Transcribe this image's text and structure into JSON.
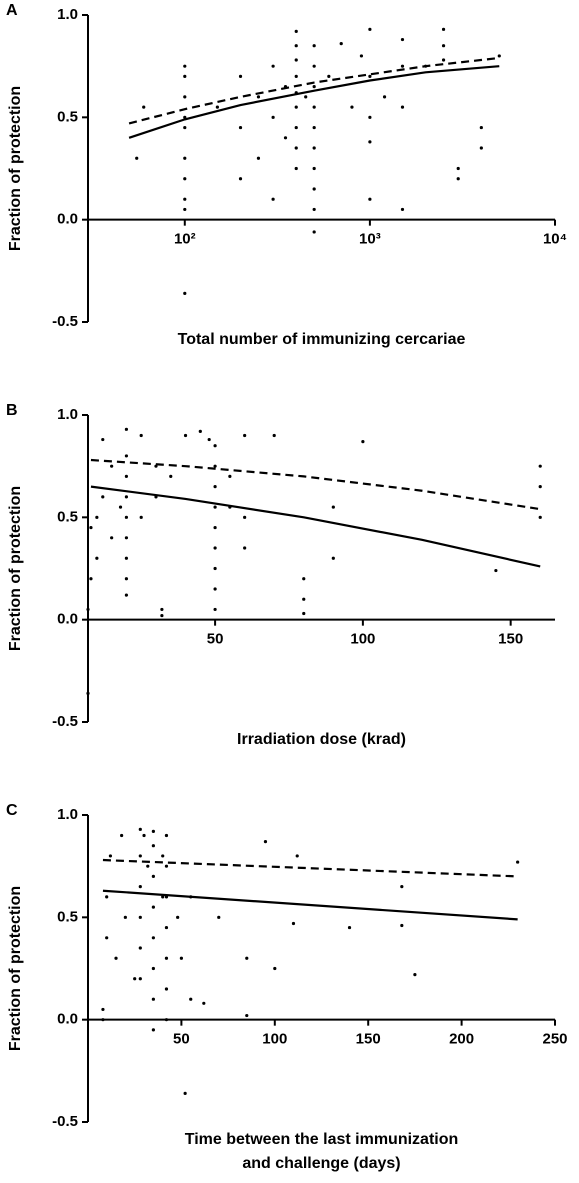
{
  "chart_data": [
    {
      "type": "scatter",
      "panel_label": "A",
      "ylabel": "Fraction of protection",
      "xlabel": [
        "Total number of immunizing cercariae"
      ],
      "xscale": "log",
      "xlim": [
        30,
        10000
      ],
      "xticks": [
        {
          "value": 100,
          "label": "10²"
        },
        {
          "value": 1000,
          "label": "10³"
        },
        {
          "value": 10000,
          "label": "10⁴"
        }
      ],
      "ylim": [
        -0.5,
        1
      ],
      "yticks": [
        -0.5,
        {
          "value": 0,
          "label": "0.0"
        },
        0.5,
        {
          "value": 1,
          "label": "1.0"
        }
      ],
      "color": "#000000",
      "points": {
        "x": [
          55,
          60,
          100,
          100,
          100,
          100,
          100,
          100,
          100,
          100,
          100,
          100,
          150,
          200,
          200,
          200,
          250,
          250,
          300,
          300,
          300,
          350,
          350,
          400,
          400,
          400,
          400,
          400,
          400,
          400,
          400,
          400,
          450,
          500,
          500,
          500,
          500,
          500,
          500,
          500,
          500,
          500,
          500,
          600,
          700,
          800,
          900,
          1000,
          1000,
          1000,
          1000,
          1000,
          1200,
          1500,
          1500,
          1500,
          1500,
          2000,
          2500,
          2500,
          2500,
          3000,
          3000,
          4000,
          4000,
          5000
        ],
        "y": [
          0.3,
          0.55,
          0.75,
          0.7,
          0.6,
          0.5,
          0.45,
          0.3,
          0.2,
          0.1,
          0.05,
          -0.36,
          0.55,
          0.7,
          0.45,
          0.2,
          0.6,
          0.3,
          0.75,
          0.5,
          0.1,
          0.65,
          0.4,
          0.92,
          0.85,
          0.78,
          0.7,
          0.62,
          0.55,
          0.45,
          0.35,
          0.25,
          0.6,
          0.85,
          0.75,
          0.65,
          0.55,
          0.45,
          0.35,
          0.25,
          0.15,
          0.05,
          -0.06,
          0.7,
          0.86,
          0.55,
          0.8,
          0.93,
          0.7,
          0.5,
          0.38,
          0.1,
          0.6,
          0.88,
          0.75,
          0.55,
          0.05,
          0.75,
          0.93,
          0.85,
          0.78,
          0.25,
          0.2,
          0.45,
          0.35,
          0.8
        ]
      },
      "series": [
        {
          "style": "solid",
          "x": [
            50,
            100,
            200,
            500,
            1000,
            2000,
            5000
          ],
          "values": [
            0.4,
            0.49,
            0.56,
            0.63,
            0.68,
            0.72,
            0.75
          ]
        },
        {
          "style": "dashed",
          "x": [
            50,
            100,
            200,
            500,
            1000,
            2000,
            5000
          ],
          "values": [
            0.47,
            0.54,
            0.6,
            0.67,
            0.71,
            0.75,
            0.79
          ]
        }
      ]
    },
    {
      "type": "scatter",
      "panel_label": "B",
      "ylabel": "Fraction of protection",
      "xlabel": [
        "Irradiation dose (krad)"
      ],
      "xlim": [
        7,
        165
      ],
      "xticks": [
        50,
        100,
        150
      ],
      "ylim": [
        -0.5,
        1
      ],
      "yticks": [
        -0.5,
        {
          "value": 0,
          "label": "0.0"
        },
        0.5,
        {
          "value": 1,
          "label": "1.0"
        }
      ],
      "color": "#000000",
      "points": {
        "x": [
          7,
          7,
          8,
          8,
          10,
          10,
          12,
          12,
          15,
          15,
          18,
          20,
          20,
          20,
          20,
          20,
          20,
          20,
          20,
          20,
          25,
          25,
          30,
          30,
          32,
          32,
          35,
          40,
          45,
          48,
          50,
          50,
          50,
          50,
          50,
          50,
          50,
          50,
          50,
          55,
          55,
          60,
          60,
          60,
          70,
          80,
          80,
          80,
          90,
          90,
          100,
          145,
          160,
          160,
          160
        ],
        "y": [
          -0.36,
          0.05,
          0.45,
          0.2,
          0.5,
          0.3,
          0.88,
          0.6,
          0.4,
          0.75,
          0.55,
          0.93,
          0.8,
          0.7,
          0.6,
          0.5,
          0.4,
          0.3,
          0.2,
          0.12,
          0.9,
          0.5,
          0.75,
          0.6,
          0.05,
          0.02,
          0.7,
          0.9,
          0.92,
          0.88,
          0.85,
          0.75,
          0.65,
          0.55,
          0.45,
          0.35,
          0.25,
          0.15,
          0.05,
          0.7,
          0.55,
          0.9,
          0.5,
          0.35,
          0.9,
          0.2,
          0.1,
          0.03,
          0.55,
          0.3,
          0.87,
          0.24,
          0.75,
          0.65,
          0.5
        ]
      },
      "series": [
        {
          "style": "solid",
          "x": [
            8,
            40,
            80,
            120,
            160
          ],
          "values": [
            0.65,
            0.59,
            0.5,
            0.39,
            0.26
          ]
        },
        {
          "style": "dashed",
          "x": [
            8,
            40,
            80,
            120,
            160
          ],
          "values": [
            0.78,
            0.75,
            0.7,
            0.63,
            0.54
          ]
        }
      ]
    },
    {
      "type": "scatter",
      "panel_label": "C",
      "ylabel": "Fraction of protection",
      "xlabel": [
        "Time between the last immunization",
        "and challenge (days)"
      ],
      "xlim": [
        0,
        250
      ],
      "xticks": [
        50,
        100,
        150,
        200,
        250
      ],
      "ylim": [
        -0.5,
        1
      ],
      "yticks": [
        -0.5,
        {
          "value": 0,
          "label": "0.0"
        },
        0.5,
        {
          "value": 1,
          "label": "1.0"
        }
      ],
      "color": "#000000",
      "points": {
        "x": [
          8,
          8,
          10,
          10,
          12,
          15,
          18,
          20,
          25,
          28,
          28,
          28,
          28,
          28,
          28,
          30,
          32,
          35,
          35,
          35,
          35,
          35,
          35,
          35,
          35,
          40,
          40,
          42,
          42,
          42,
          42,
          42,
          42,
          42,
          48,
          50,
          52,
          55,
          55,
          62,
          70,
          85,
          85,
          95,
          100,
          110,
          112,
          140,
          168,
          168,
          175,
          230
        ],
        "y": [
          0.05,
          0.0,
          0.6,
          0.4,
          0.8,
          0.3,
          0.9,
          0.5,
          0.2,
          0.93,
          0.8,
          0.65,
          0.5,
          0.35,
          0.2,
          0.9,
          0.75,
          0.92,
          0.85,
          0.7,
          0.55,
          0.4,
          0.25,
          0.1,
          -0.05,
          0.8,
          0.6,
          0.9,
          0.75,
          0.6,
          0.45,
          0.3,
          0.15,
          0.0,
          0.5,
          0.3,
          -0.36,
          0.6,
          0.1,
          0.08,
          0.5,
          0.3,
          0.02,
          0.87,
          0.25,
          0.47,
          0.8,
          0.45,
          0.65,
          0.46,
          0.22,
          0.77
        ]
      },
      "series": [
        {
          "style": "solid",
          "x": [
            8,
            230
          ],
          "values": [
            0.63,
            0.49
          ]
        },
        {
          "style": "dashed",
          "x": [
            8,
            230
          ],
          "values": [
            0.78,
            0.7
          ]
        }
      ]
    }
  ]
}
